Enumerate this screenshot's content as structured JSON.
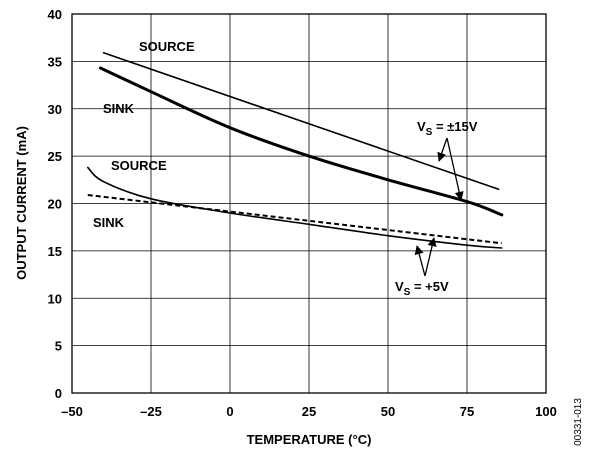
{
  "chart_data": {
    "type": "line",
    "xlabel": "TEMPERATURE (°C)",
    "ylabel": "OUTPUT CURRENT (mA)",
    "xlim": [
      -50,
      100
    ],
    "ylim": [
      0,
      40
    ],
    "xticks": [
      -50,
      -25,
      0,
      25,
      50,
      75,
      100
    ],
    "xtick_labels": [
      "–50",
      "–25",
      "0",
      "25",
      "50",
      "75",
      "100"
    ],
    "yticks": [
      0,
      5,
      10,
      15,
      20,
      25,
      30,
      35,
      40
    ],
    "grid": true,
    "series": [
      {
        "condition": "VS = ±15V",
        "label": "SOURCE",
        "style": "solid-thin",
        "x": [
          -40,
          85
        ],
        "y": [
          35.9,
          21.5
        ]
      },
      {
        "condition": "VS = ±15V",
        "label": "SINK",
        "style": "solid-thick",
        "x": [
          -41,
          -25,
          0,
          25,
          50,
          75,
          86
        ],
        "y": [
          34.3,
          31.8,
          28.0,
          25.0,
          22.5,
          20.2,
          18.8
        ]
      },
      {
        "condition": "VS = +5V",
        "label": "SOURCE",
        "style": "solid-thin",
        "x": [
          -45,
          -40,
          -25,
          0,
          25,
          50,
          75,
          86
        ],
        "y": [
          23.8,
          22.3,
          20.5,
          19.0,
          17.8,
          16.6,
          15.6,
          15.3
        ]
      },
      {
        "condition": "VS = +5V",
        "label": "SINK",
        "style": "dashed",
        "x": [
          -45,
          86
        ],
        "y": [
          20.9,
          15.8
        ]
      }
    ],
    "annotations": {
      "source_15v": "SOURCE",
      "sink_15v": "SINK",
      "source_5v": "SOURCE",
      "sink_5v": "SINK",
      "vs15_main": "V",
      "vs15_sub": "S",
      "vs15_value": " = ±15V",
      "vs5_main": "V",
      "vs5_sub": "S",
      "vs5_value": " = +5V"
    },
    "figure_id": "00331-013"
  }
}
